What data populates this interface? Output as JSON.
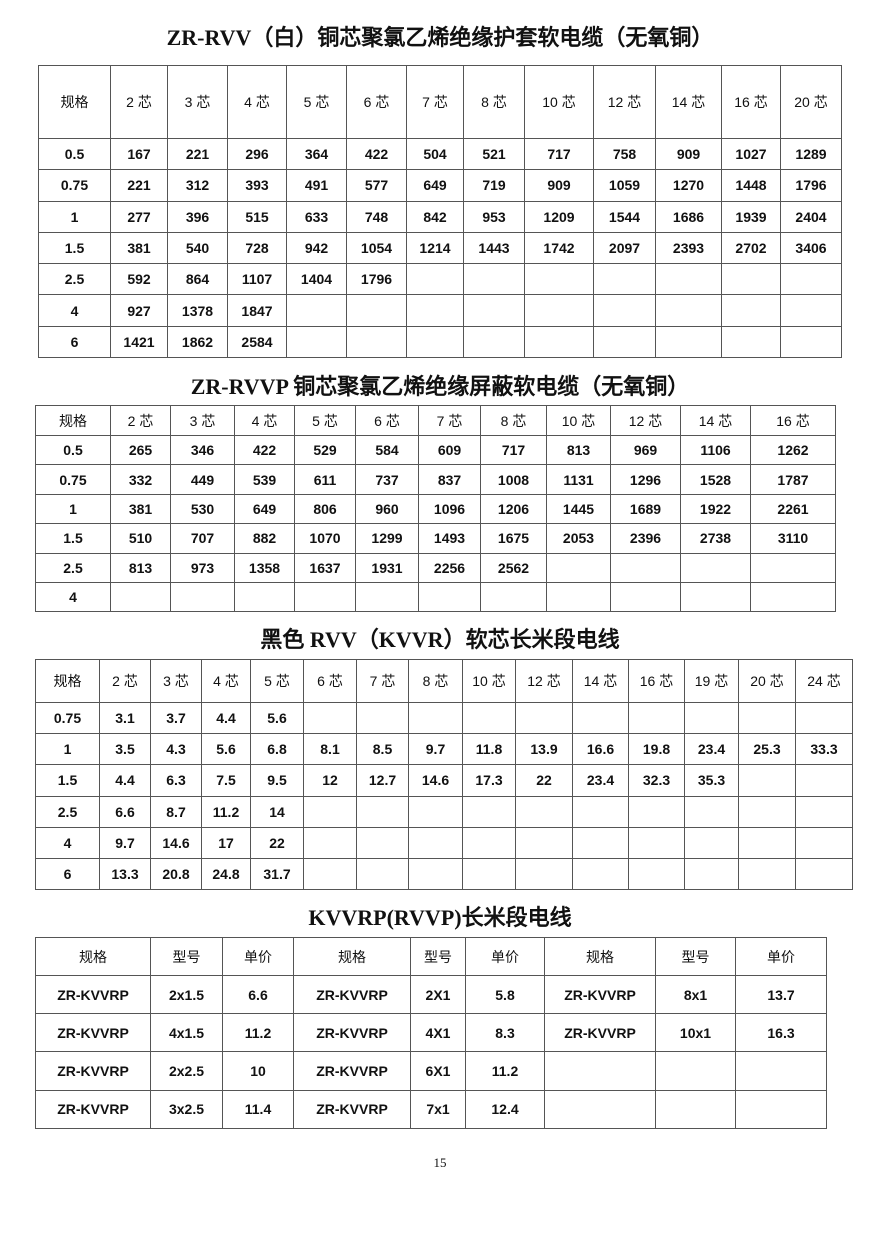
{
  "tables": [
    {
      "title": "ZR-RVV（白）铜芯聚氯乙烯绝缘护套软电缆（无氧铜）",
      "headers": [
        "规格",
        "2 芯",
        "3 芯",
        "4 芯",
        "5 芯",
        "6 芯",
        "7 芯",
        "8 芯",
        "10 芯",
        "12 芯",
        "14 芯",
        "16 芯",
        "20 芯"
      ],
      "rows": [
        [
          "0.5",
          "167",
          "221",
          "296",
          "364",
          "422",
          "504",
          "521",
          "717",
          "758",
          "909",
          "1027",
          "1289"
        ],
        [
          "0.75",
          "221",
          "312",
          "393",
          "491",
          "577",
          "649",
          "719",
          "909",
          "1059",
          "1270",
          "1448",
          "1796"
        ],
        [
          "1",
          "277",
          "396",
          "515",
          "633",
          "748",
          "842",
          "953",
          "1209",
          "1544",
          "1686",
          "1939",
          "2404"
        ],
        [
          "1.5",
          "381",
          "540",
          "728",
          "942",
          "1054",
          "1214",
          "1443",
          "1742",
          "2097",
          "2393",
          "2702",
          "3406"
        ],
        [
          "2.5",
          "592",
          "864",
          "1107",
          "1404",
          "1796",
          "",
          "",
          "",
          "",
          "",
          "",
          ""
        ],
        [
          "4",
          "927",
          "1378",
          "1847",
          "",
          "",
          "",
          "",
          "",
          "",
          "",
          "",
          ""
        ],
        [
          "6",
          "1421",
          "1862",
          "2584",
          "",
          "",
          "",
          "",
          "",
          "",
          "",
          "",
          ""
        ]
      ]
    },
    {
      "title": "ZR-RVVP 铜芯聚氯乙烯绝缘屏蔽软电缆（无氧铜）",
      "headers": [
        "规格",
        "2 芯",
        "3 芯",
        "4 芯",
        "5 芯",
        "6 芯",
        "7 芯",
        "8 芯",
        "10 芯",
        "12 芯",
        "14 芯",
        "16 芯"
      ],
      "rows": [
        [
          "0.5",
          "265",
          "346",
          "422",
          "529",
          "584",
          "609",
          "717",
          "813",
          "969",
          "1106",
          "1262"
        ],
        [
          "0.75",
          "332",
          "449",
          "539",
          "611",
          "737",
          "837",
          "1008",
          "1131",
          "1296",
          "1528",
          "1787"
        ],
        [
          "1",
          "381",
          "530",
          "649",
          "806",
          "960",
          "1096",
          "1206",
          "1445",
          "1689",
          "1922",
          "2261"
        ],
        [
          "1.5",
          "510",
          "707",
          "882",
          "1070",
          "1299",
          "1493",
          "1675",
          "2053",
          "2396",
          "2738",
          "3110"
        ],
        [
          "2.5",
          "813",
          "973",
          "1358",
          "1637",
          "1931",
          "2256",
          "2562",
          "",
          "",
          "",
          ""
        ],
        [
          "4",
          "",
          "",
          "",
          "",
          "",
          "",
          "",
          "",
          "",
          "",
          ""
        ]
      ]
    },
    {
      "title": "黑色 RVV（KVVR）软芯长米段电线",
      "headers": [
        "规格",
        "2 芯",
        "3 芯",
        "4 芯",
        "5 芯",
        "6 芯",
        "7 芯",
        "8 芯",
        "10 芯",
        "12 芯",
        "14 芯",
        "16 芯",
        "19 芯",
        "20 芯",
        "24 芯"
      ],
      "rows": [
        [
          "0.75",
          "3.1",
          "3.7",
          "4.4",
          "5.6",
          "",
          "",
          "",
          "",
          "",
          "",
          "",
          "",
          "",
          ""
        ],
        [
          "1",
          "3.5",
          "4.3",
          "5.6",
          "6.8",
          "8.1",
          "8.5",
          "9.7",
          "11.8",
          "13.9",
          "16.6",
          "19.8",
          "23.4",
          "25.3",
          "33.3"
        ],
        [
          "1.5",
          "4.4",
          "6.3",
          "7.5",
          "9.5",
          "12",
          "12.7",
          "14.6",
          "17.3",
          "22",
          "23.4",
          "32.3",
          "35.3",
          "",
          ""
        ],
        [
          "2.5",
          "6.6",
          "8.7",
          "11.2",
          "14",
          "",
          "",
          "",
          "",
          "",
          "",
          "",
          "",
          "",
          ""
        ],
        [
          "4",
          "9.7",
          "14.6",
          "17",
          "22",
          "",
          "",
          "",
          "",
          "",
          "",
          "",
          "",
          "",
          ""
        ],
        [
          "6",
          "13.3",
          "20.8",
          "24.8",
          "31.7",
          "",
          "",
          "",
          "",
          "",
          "",
          "",
          "",
          "",
          ""
        ]
      ]
    },
    {
      "title": "KVVRP(RVVP)长米段电线",
      "headers": [
        "规格",
        "型号",
        "单价",
        "规格",
        "型号",
        "单价",
        "规格",
        "型号",
        "单价"
      ],
      "rows": [
        [
          "ZR-KVVRP",
          "2x1.5",
          "6.6",
          "ZR-KVVRP",
          "2X1",
          "5.8",
          "ZR-KVVRP",
          "8x1",
          "13.7"
        ],
        [
          "ZR-KVVRP",
          "4x1.5",
          "11.2",
          "ZR-KVVRP",
          "4X1",
          "8.3",
          "ZR-KVVRP",
          "10x1",
          "16.3"
        ],
        [
          "ZR-KVVRP",
          "2x2.5",
          "10",
          "ZR-KVVRP",
          "6X1",
          "11.2",
          "",
          "",
          ""
        ],
        [
          "ZR-KVVRP",
          "3x2.5",
          "11.4",
          "ZR-KVVRP",
          "7x1",
          "12.4",
          "",
          "",
          ""
        ]
      ]
    }
  ],
  "page_number": "15"
}
